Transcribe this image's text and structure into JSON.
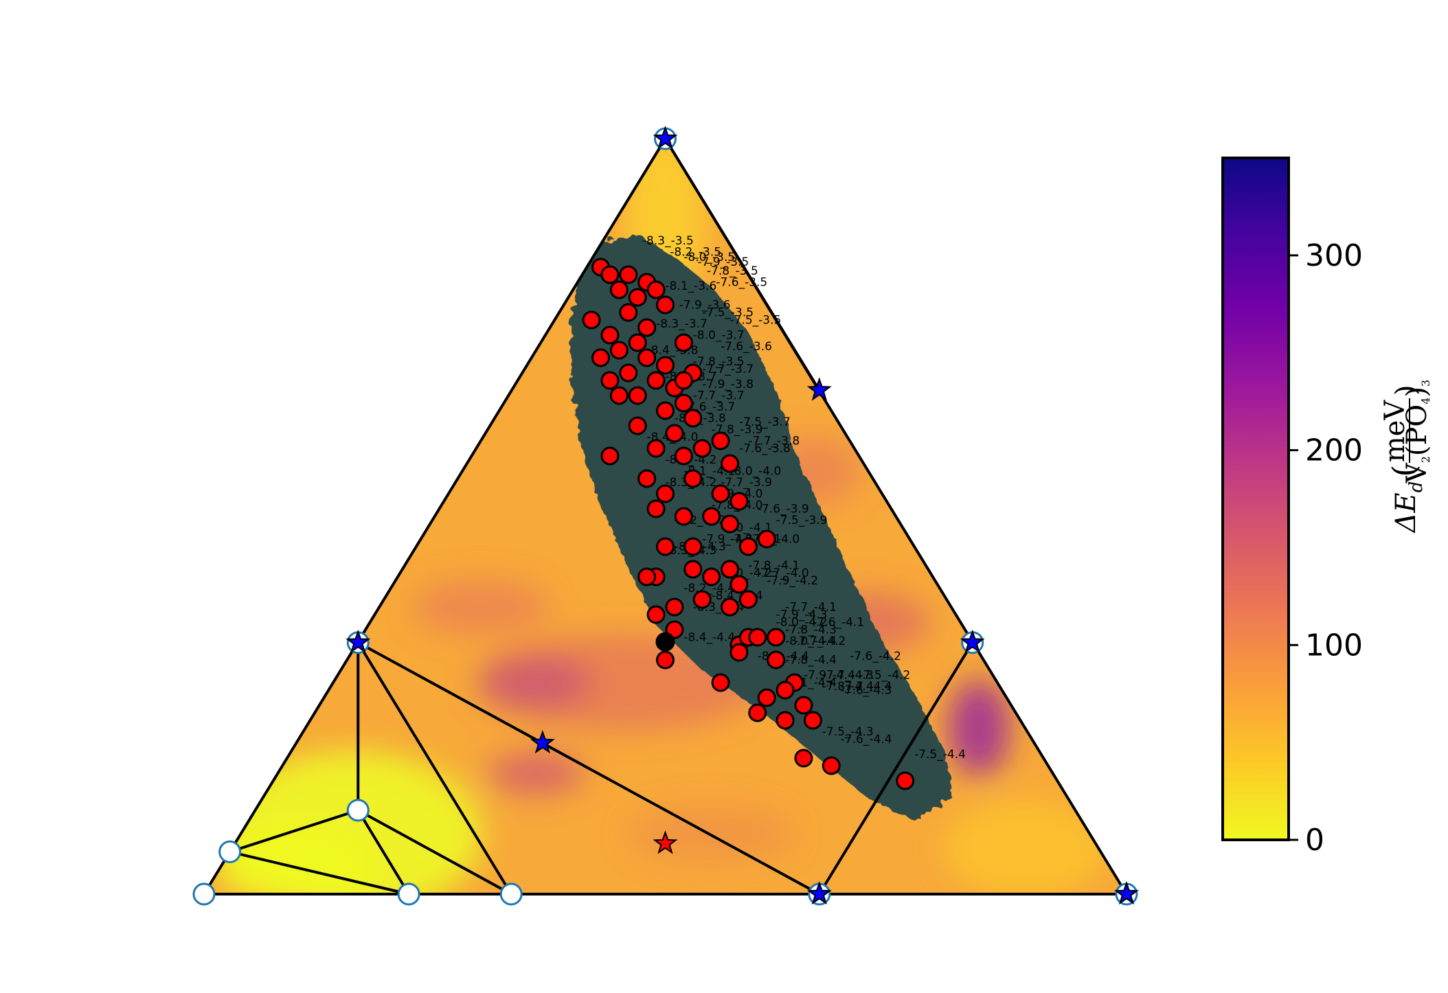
{
  "chart_data": {
    "type": "scatter",
    "subtype": "ternary phase diagram with contour background",
    "colormap": "plasma_reversed",
    "colorbar": {
      "label": "ΔE_d (meV / V2(PO4)3)",
      "label_parts": {
        "main": "ΔE",
        "sub": "d",
        "num": "meV",
        "den_a": "V",
        "den_sub1": "2",
        "den_b": "(PO",
        "den_sub2": "4",
        "den_c": ")",
        "den_sub3": "3"
      },
      "min": 0,
      "max": 350,
      "ticks": [
        0,
        100,
        200,
        300
      ],
      "tick_labels": [
        "0",
        "100",
        "200",
        "300"
      ],
      "colors": [
        "#f0f921",
        "#fdca26",
        "#fb9f3a",
        "#ed7953",
        "#d8576b",
        "#bd3786",
        "#9c179e",
        "#7201a8",
        "#46039f",
        "#0d0887"
      ]
    },
    "triangle_vertices": [
      [
        0,
        0
      ],
      [
        1,
        0
      ],
      [
        0.5,
        1
      ]
    ],
    "stable_phases": [
      {
        "a": 0.5,
        "b": 1.0
      },
      {
        "a": 0.167,
        "b": 0.333
      },
      {
        "a": 0.833,
        "b": 0.333
      },
      {
        "a": 0.667,
        "b": 0.0
      },
      {
        "a": 1.0,
        "b": 0.0
      },
      {
        "a": 0.667,
        "b": 0.667
      },
      {
        "a": 0.367,
        "b": 0.2
      }
    ],
    "open_phases": [
      {
        "a": 0.0,
        "b": 0.0
      },
      {
        "a": 0.028,
        "b": 0.056
      },
      {
        "a": 0.222,
        "b": 0.0
      },
      {
        "a": 0.333,
        "b": 0.0
      },
      {
        "a": 0.167,
        "b": 0.111
      }
    ],
    "tie_lines": [
      [
        [
          0.5,
          1.0
        ],
        [
          0.5,
          1.0
        ]
      ],
      [
        [
          0.167,
          0.333
        ],
        [
          0.167,
          0.111
        ]
      ],
      [
        [
          0.167,
          0.333
        ],
        [
          0.333,
          0.0
        ]
      ],
      [
        [
          0.167,
          0.333
        ],
        [
          0.667,
          0.0
        ]
      ],
      [
        [
          0.167,
          0.111
        ],
        [
          0.028,
          0.056
        ]
      ],
      [
        [
          0.167,
          0.111
        ],
        [
          0.222,
          0.0
        ]
      ],
      [
        [
          0.167,
          0.111
        ],
        [
          0.333,
          0.0
        ]
      ],
      [
        [
          0.028,
          0.056
        ],
        [
          0.222,
          0.0
        ]
      ],
      [
        [
          0.5,
          1.0
        ],
        [
          0.667,
          0.667
        ]
      ],
      [
        [
          0.833,
          0.333
        ],
        [
          0.667,
          0.0
        ]
      ]
    ],
    "red_star": {
      "a": 0.5,
      "b": 0.067
    },
    "black_point": {
      "a": 0.5,
      "b": 0.334
    },
    "red_points": [
      {
        "a": 0.43,
        "b": 0.83
      },
      {
        "a": 0.44,
        "b": 0.82
      },
      {
        "a": 0.46,
        "b": 0.82
      },
      {
        "a": 0.48,
        "b": 0.81
      },
      {
        "a": 0.45,
        "b": 0.8
      },
      {
        "a": 0.47,
        "b": 0.79
      },
      {
        "a": 0.49,
        "b": 0.8
      },
      {
        "a": 0.5,
        "b": 0.78
      },
      {
        "a": 0.42,
        "b": 0.76
      },
      {
        "a": 0.46,
        "b": 0.77
      },
      {
        "a": 0.48,
        "b": 0.75
      },
      {
        "a": 0.44,
        "b": 0.74
      },
      {
        "a": 0.47,
        "b": 0.73
      },
      {
        "a": 0.45,
        "b": 0.72
      },
      {
        "a": 0.52,
        "b": 0.73
      },
      {
        "a": 0.43,
        "b": 0.71
      },
      {
        "a": 0.48,
        "b": 0.71
      },
      {
        "a": 0.5,
        "b": 0.7
      },
      {
        "a": 0.53,
        "b": 0.69
      },
      {
        "a": 0.44,
        "b": 0.68
      },
      {
        "a": 0.46,
        "b": 0.69
      },
      {
        "a": 0.49,
        "b": 0.68
      },
      {
        "a": 0.51,
        "b": 0.67
      },
      {
        "a": 0.52,
        "b": 0.68
      },
      {
        "a": 0.45,
        "b": 0.66
      },
      {
        "a": 0.47,
        "b": 0.66
      },
      {
        "a": 0.5,
        "b": 0.64
      },
      {
        "a": 0.52,
        "b": 0.65
      },
      {
        "a": 0.53,
        "b": 0.63
      },
      {
        "a": 0.47,
        "b": 0.62
      },
      {
        "a": 0.51,
        "b": 0.61
      },
      {
        "a": 0.54,
        "b": 0.59
      },
      {
        "a": 0.56,
        "b": 0.6
      },
      {
        "a": 0.44,
        "b": 0.58
      },
      {
        "a": 0.49,
        "b": 0.59
      },
      {
        "a": 0.52,
        "b": 0.58
      },
      {
        "a": 0.57,
        "b": 0.57
      },
      {
        "a": 0.48,
        "b": 0.55
      },
      {
        "a": 0.5,
        "b": 0.53
      },
      {
        "a": 0.53,
        "b": 0.55
      },
      {
        "a": 0.56,
        "b": 0.53
      },
      {
        "a": 0.58,
        "b": 0.52
      },
      {
        "a": 0.49,
        "b": 0.51
      },
      {
        "a": 0.52,
        "b": 0.5
      },
      {
        "a": 0.55,
        "b": 0.5
      },
      {
        "a": 0.57,
        "b": 0.49
      },
      {
        "a": 0.5,
        "b": 0.46
      },
      {
        "a": 0.53,
        "b": 0.46
      },
      {
        "a": 0.59,
        "b": 0.46
      },
      {
        "a": 0.61,
        "b": 0.47
      },
      {
        "a": 0.49,
        "b": 0.42
      },
      {
        "a": 0.53,
        "b": 0.43
      },
      {
        "a": 0.55,
        "b": 0.42
      },
      {
        "a": 0.57,
        "b": 0.43
      },
      {
        "a": 0.58,
        "b": 0.41
      },
      {
        "a": 0.48,
        "b": 0.42
      },
      {
        "a": 0.51,
        "b": 0.38
      },
      {
        "a": 0.54,
        "b": 0.39
      },
      {
        "a": 0.57,
        "b": 0.38
      },
      {
        "a": 0.59,
        "b": 0.39
      },
      {
        "a": 0.49,
        "b": 0.37
      },
      {
        "a": 0.51,
        "b": 0.35
      },
      {
        "a": 0.58,
        "b": 0.33
      },
      {
        "a": 0.59,
        "b": 0.34
      },
      {
        "a": 0.6,
        "b": 0.34
      },
      {
        "a": 0.62,
        "b": 0.34
      },
      {
        "a": 0.5,
        "b": 0.31
      },
      {
        "a": 0.58,
        "b": 0.32
      },
      {
        "a": 0.62,
        "b": 0.31
      },
      {
        "a": 0.56,
        "b": 0.28
      },
      {
        "a": 0.64,
        "b": 0.28
      },
      {
        "a": 0.63,
        "b": 0.27
      },
      {
        "a": 0.61,
        "b": 0.26
      },
      {
        "a": 0.65,
        "b": 0.25
      },
      {
        "a": 0.6,
        "b": 0.24
      },
      {
        "a": 0.63,
        "b": 0.23
      },
      {
        "a": 0.66,
        "b": 0.23
      },
      {
        "a": 0.65,
        "b": 0.18
      },
      {
        "a": 0.68,
        "b": 0.17
      },
      {
        "a": 0.76,
        "b": 0.15
      }
    ],
    "point_labels": [
      {
        "a": 0.475,
        "b": 0.86,
        "text": "-8.3_-3.5"
      },
      {
        "a": 0.505,
        "b": 0.845,
        "text": "-8.2_-3.5"
      },
      {
        "a": 0.52,
        "b": 0.838,
        "text": "-8.0_-3.5"
      },
      {
        "a": 0.535,
        "b": 0.832,
        "text": "-7.9_-3.5"
      },
      {
        "a": 0.545,
        "b": 0.82,
        "text": "-7.8_-3.5"
      },
      {
        "a": 0.555,
        "b": 0.805,
        "text": "-7.6_-3.5"
      },
      {
        "a": 0.5,
        "b": 0.8,
        "text": "-8.1_-3.6"
      },
      {
        "a": 0.515,
        "b": 0.775,
        "text": "-7.9_-3.6"
      },
      {
        "a": 0.54,
        "b": 0.765,
        "text": "-7.5_-3.5"
      },
      {
        "a": 0.57,
        "b": 0.755,
        "text": "-7.5_-3.5"
      },
      {
        "a": 0.49,
        "b": 0.75,
        "text": "-8.3_-3.7"
      },
      {
        "a": 0.53,
        "b": 0.735,
        "text": "-8.0_-3.7"
      },
      {
        "a": 0.56,
        "b": 0.72,
        "text": "-7.6_-3.6"
      },
      {
        "a": 0.48,
        "b": 0.715,
        "text": "-8.4_-3.8"
      },
      {
        "a": 0.53,
        "b": 0.7,
        "text": "-7.8_-3.5"
      },
      {
        "a": 0.54,
        "b": 0.69,
        "text": "-7.7_-3.7"
      },
      {
        "a": 0.5,
        "b": 0.68,
        "text": "-8.1_-3.7"
      },
      {
        "a": 0.54,
        "b": 0.67,
        "text": "-7.9_-3.8"
      },
      {
        "a": 0.53,
        "b": 0.655,
        "text": "-7.7_-3.7"
      },
      {
        "a": 0.52,
        "b": 0.64,
        "text": "-7.6_-3.7"
      },
      {
        "a": 0.51,
        "b": 0.625,
        "text": "-8.2_-3.8"
      },
      {
        "a": 0.58,
        "b": 0.62,
        "text": "-7.5_-3.7"
      },
      {
        "a": 0.55,
        "b": 0.61,
        "text": "-7.8_-3.9"
      },
      {
        "a": 0.48,
        "b": 0.6,
        "text": "-8.4_-4.0"
      },
      {
        "a": 0.59,
        "b": 0.595,
        "text": "-7.7_-3.8"
      },
      {
        "a": 0.58,
        "b": 0.585,
        "text": "-7.6_-3.8"
      },
      {
        "a": 0.5,
        "b": 0.57,
        "text": "-8.4_-4.2"
      },
      {
        "a": 0.52,
        "b": 0.555,
        "text": "-8.1_-4.1"
      },
      {
        "a": 0.57,
        "b": 0.555,
        "text": "-8.0_-4.0"
      },
      {
        "a": 0.5,
        "b": 0.54,
        "text": "-8.3_-4.2"
      },
      {
        "a": 0.56,
        "b": 0.54,
        "text": "-7.7_-3.9"
      },
      {
        "a": 0.55,
        "b": 0.525,
        "text": "-7.9_-4.0"
      },
      {
        "a": 0.55,
        "b": 0.51,
        "text": "-7.8_-4.0"
      },
      {
        "a": 0.6,
        "b": 0.505,
        "text": "-7.6_-3.9"
      },
      {
        "a": 0.62,
        "b": 0.49,
        "text": "-7.5_-3.9"
      },
      {
        "a": 0.51,
        "b": 0.49,
        "text": "-8.2_-4.2"
      },
      {
        "a": 0.56,
        "b": 0.48,
        "text": "-8.0_-4.1"
      },
      {
        "a": 0.54,
        "b": 0.465,
        "text": "-7.9_-4.1"
      },
      {
        "a": 0.57,
        "b": 0.465,
        "text": "-7.8_-4.1"
      },
      {
        "a": 0.59,
        "b": 0.465,
        "text": "-7.7_-4.0"
      },
      {
        "a": 0.51,
        "b": 0.455,
        "text": "-8.2_-4.3"
      },
      {
        "a": 0.5,
        "b": 0.45,
        "text": "-8.3_-4.3"
      },
      {
        "a": 0.59,
        "b": 0.43,
        "text": "-7.8_-4.1"
      },
      {
        "a": 0.56,
        "b": 0.42,
        "text": "-8.0_-4.2"
      },
      {
        "a": 0.6,
        "b": 0.42,
        "text": "-7.7_-4.0"
      },
      {
        "a": 0.61,
        "b": 0.41,
        "text": "-7.9_-4.2"
      },
      {
        "a": 0.52,
        "b": 0.4,
        "text": "-8.2_-4.4"
      },
      {
        "a": 0.55,
        "b": 0.39,
        "text": "-8.4_-4.4"
      },
      {
        "a": 0.53,
        "b": 0.375,
        "text": "-8.3_-4.4"
      },
      {
        "a": 0.63,
        "b": 0.375,
        "text": "-7.7_-4.1"
      },
      {
        "a": 0.62,
        "b": 0.365,
        "text": "-7.9_-4.3"
      },
      {
        "a": 0.62,
        "b": 0.355,
        "text": "-8.0_-4.2"
      },
      {
        "a": 0.66,
        "b": 0.355,
        "text": "-7.6_-4.1"
      },
      {
        "a": 0.63,
        "b": 0.345,
        "text": "-7.8_-4.3"
      },
      {
        "a": 0.52,
        "b": 0.335,
        "text": "-8.4_-4.4"
      },
      {
        "a": 0.63,
        "b": 0.33,
        "text": "-8.0_-4.4"
      },
      {
        "a": 0.64,
        "b": 0.33,
        "text": "-7.7_-4.2"
      },
      {
        "a": 0.6,
        "b": 0.31,
        "text": "-8.2_-4.4"
      },
      {
        "a": 0.63,
        "b": 0.305,
        "text": "-7.8_-4.4"
      },
      {
        "a": 0.7,
        "b": 0.31,
        "text": "-7.6_-4.2"
      },
      {
        "a": 0.65,
        "b": 0.285,
        "text": "-7.9_-4.4"
      },
      {
        "a": 0.67,
        "b": 0.285,
        "text": "-7.7_-4.3"
      },
      {
        "a": 0.71,
        "b": 0.285,
        "text": "-7.5_-4.2"
      },
      {
        "a": 0.63,
        "b": 0.275,
        "text": "-8.1_-4.4"
      },
      {
        "a": 0.67,
        "b": 0.27,
        "text": "-7.8_-4.4"
      },
      {
        "a": 0.69,
        "b": 0.27,
        "text": "-7.7_-4.4"
      },
      {
        "a": 0.69,
        "b": 0.265,
        "text": "-7.6_-4.3"
      },
      {
        "a": 0.67,
        "b": 0.21,
        "text": "-7.5_-4.3"
      },
      {
        "a": 0.69,
        "b": 0.2,
        "text": "-7.6_-4.4"
      },
      {
        "a": 0.77,
        "b": 0.18,
        "text": "-7.5_-4.4"
      }
    ]
  }
}
